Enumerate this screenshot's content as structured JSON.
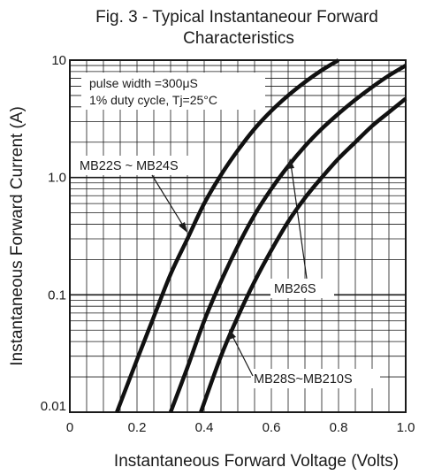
{
  "chart_data": {
    "type": "line",
    "title_line1": "Fig. 3 - Typical Instantaneour Forward",
    "title_line2": "Characteristics",
    "xlabel": "Instantaneous Forward Voltage (Volts)",
    "ylabel": "Instantaneous Forward Current (A)",
    "xlim": [
      0,
      1.0
    ],
    "ylim": [
      0.01,
      10
    ],
    "y_scale": "log",
    "grid": true,
    "x_ticks": [
      0,
      0.2,
      0.4,
      0.6,
      0.8,
      1.0
    ],
    "x_tick_labels": [
      "0",
      "0.2",
      "0.4",
      "0.6",
      "0.8",
      "1.0"
    ],
    "y_ticks": [
      0.01,
      0.1,
      1.0,
      10
    ],
    "y_tick_labels": [
      "0.01",
      "0.1",
      "1.0",
      "10"
    ],
    "note_line1": "pulse width =300μS",
    "note_line2": "1% duty cycle, Tj=25°C",
    "series": [
      {
        "name": "MB22S ~ MB24S",
        "x": [
          0.14,
          0.2,
          0.25,
          0.3,
          0.35,
          0.4,
          0.45,
          0.5,
          0.55,
          0.6,
          0.65,
          0.7,
          0.75,
          0.8
        ],
        "y": [
          0.01,
          0.028,
          0.065,
          0.15,
          0.3,
          0.6,
          1.05,
          1.7,
          2.6,
          3.7,
          5.0,
          6.5,
          8.2,
          10
        ]
      },
      {
        "name": "MB26S",
        "x": [
          0.3,
          0.35,
          0.4,
          0.45,
          0.5,
          0.55,
          0.6,
          0.65,
          0.7,
          0.75,
          0.8,
          0.85,
          0.9,
          0.95,
          1.0
        ],
        "y": [
          0.01,
          0.024,
          0.06,
          0.13,
          0.26,
          0.48,
          0.8,
          1.25,
          1.85,
          2.6,
          3.5,
          4.6,
          5.9,
          7.4,
          9.0
        ]
      },
      {
        "name": "MB28S~MB210S",
        "x": [
          0.39,
          0.45,
          0.5,
          0.55,
          0.6,
          0.65,
          0.7,
          0.75,
          0.8,
          0.85,
          0.9,
          0.95,
          1.0
        ],
        "y": [
          0.01,
          0.03,
          0.065,
          0.13,
          0.24,
          0.42,
          0.67,
          1.0,
          1.45,
          2.0,
          2.75,
          3.6,
          4.7
        ]
      }
    ]
  }
}
